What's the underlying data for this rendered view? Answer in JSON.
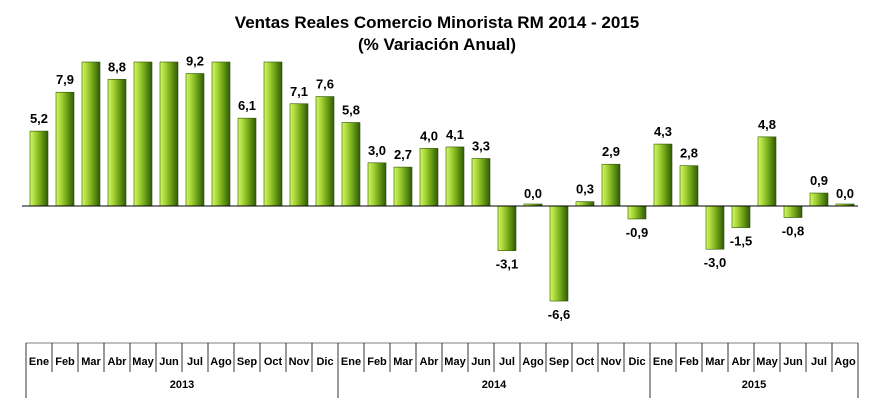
{
  "chart_data": {
    "type": "bar",
    "title": "Ventas Reales Comercio Minorista RM 2014 - 2015",
    "subtitle": "(% Variación Anual)",
    "xlabel": "",
    "ylabel": "",
    "ylim": [
      -8,
      10
    ],
    "grid": false,
    "legend": "none",
    "colors": {
      "bar_light": "#c8f060",
      "bar_dark": "#3a6a00",
      "bar_stroke": "#2f5400",
      "axis": "#000000"
    },
    "categories": [
      "Ene",
      "Feb",
      "Mar",
      "Abr",
      "May",
      "Jun",
      "Jul",
      "Ago",
      "Sep",
      "Oct",
      "Nov",
      "Dic",
      "Ene",
      "Feb",
      "Mar",
      "Abr",
      "May",
      "Jun",
      "Jul",
      "Ago",
      "Sep",
      "Oct",
      "Nov",
      "Dic",
      "Ene",
      "Feb",
      "Mar",
      "Abr",
      "May",
      "Jun",
      "Jul",
      "Ago"
    ],
    "values": [
      5.2,
      7.9,
      10.0,
      8.8,
      10.0,
      10.0,
      9.2,
      10.0,
      6.1,
      10.0,
      7.1,
      7.6,
      5.8,
      3.0,
      2.7,
      4.0,
      4.1,
      3.3,
      -3.1,
      0.0,
      -6.6,
      0.3,
      2.9,
      -0.9,
      4.3,
      2.8,
      -3.0,
      -1.5,
      4.8,
      -0.8,
      0.9,
      0.0
    ],
    "data_labels": [
      "5,2",
      "7,9",
      "",
      "8,8",
      "",
      "",
      "9,2",
      "",
      "6,1",
      "",
      "7,1",
      "7,6",
      "5,8",
      "3,0",
      "2,7",
      "4,0",
      "4,1",
      "3,3",
      "-3,1",
      "0,0",
      "-6,6",
      "0,3",
      "2,9",
      "-0,9",
      "4,3",
      "2,8",
      "-3,0",
      "-1,5",
      "4,8",
      "-0,8",
      "0,9",
      "0,0"
    ],
    "years": [
      {
        "label": "2013",
        "count": 12
      },
      {
        "label": "2014",
        "count": 12
      },
      {
        "label": "2015",
        "count": 8
      }
    ]
  }
}
